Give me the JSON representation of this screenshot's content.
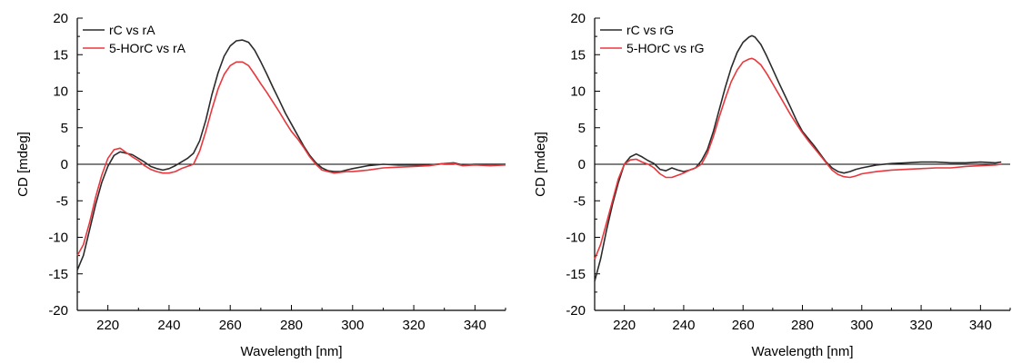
{
  "chart_data": [
    {
      "type": "line",
      "xlabel": "Wavelength [nm]",
      "ylabel": "CD [mdeg]",
      "xlim": [
        210,
        350
      ],
      "ylim": [
        -20,
        20
      ],
      "xticks": [
        "220",
        "240",
        "260",
        "280",
        "300",
        "320",
        "340"
      ],
      "yticks": [
        "-20",
        "-15",
        "-10",
        "-5",
        "0",
        "5",
        "10",
        "15",
        "20"
      ],
      "zero_line": true,
      "legend_position": "top-left",
      "series": [
        {
          "name": "rC vs rA",
          "color": "#2b2b2b",
          "x": [
            210,
            212,
            214,
            216,
            218,
            220,
            222,
            224,
            226,
            228,
            230,
            232,
            234,
            236,
            238,
            240,
            242,
            244,
            246,
            248,
            250,
            252,
            254,
            256,
            258,
            260,
            262,
            264,
            266,
            268,
            270,
            272,
            274,
            276,
            278,
            280,
            282,
            284,
            286,
            288,
            290,
            292,
            294,
            296,
            298,
            300,
            305,
            310,
            315,
            320,
            325,
            330,
            333,
            336,
            340,
            345,
            350
          ],
          "y": [
            -14.5,
            -12.5,
            -9,
            -5.5,
            -2.5,
            -0.3,
            1.2,
            1.7,
            1.5,
            1.3,
            0.8,
            0.3,
            -0.3,
            -0.6,
            -0.8,
            -0.6,
            -0.2,
            0.3,
            0.8,
            1.5,
            3.2,
            6,
            9.5,
            12.5,
            14.8,
            16.2,
            16.9,
            17,
            16.7,
            15.6,
            14,
            12.3,
            10.5,
            8.8,
            7,
            5.5,
            4,
            2.5,
            1.2,
            0.2,
            -0.5,
            -0.9,
            -1,
            -1,
            -0.8,
            -0.6,
            -0.2,
            0,
            -0.1,
            -0.1,
            -0.1,
            0.1,
            0.2,
            -0.1,
            0,
            0,
            0
          ]
        },
        {
          "name": "5-HOrC vs rA",
          "color": "#e8383d",
          "x": [
            210,
            212,
            214,
            216,
            218,
            220,
            222,
            224,
            226,
            228,
            230,
            232,
            234,
            236,
            238,
            240,
            242,
            244,
            246,
            248,
            250,
            252,
            254,
            256,
            258,
            260,
            262,
            264,
            266,
            268,
            270,
            272,
            274,
            276,
            278,
            280,
            282,
            284,
            286,
            288,
            290,
            292,
            294,
            296,
            298,
            300,
            305,
            310,
            315,
            320,
            325,
            330,
            333,
            336,
            340,
            345,
            350
          ],
          "y": [
            -12.5,
            -11,
            -8,
            -4.5,
            -1.5,
            0.8,
            2,
            2.2,
            1.6,
            1,
            0.5,
            -0.2,
            -0.7,
            -1,
            -1.2,
            -1.2,
            -1,
            -0.6,
            -0.3,
            0,
            1.8,
            4.5,
            7.5,
            10.3,
            12.3,
            13.5,
            14,
            14,
            13.5,
            12.3,
            11,
            9.8,
            8.5,
            7.2,
            5.8,
            4.5,
            3.5,
            2.3,
            1,
            0,
            -0.8,
            -1,
            -1.2,
            -1.1,
            -1,
            -1,
            -0.8,
            -0.5,
            -0.4,
            -0.3,
            -0.2,
            0.1,
            0.1,
            -0.2,
            -0.1,
            -0.2,
            -0.1
          ]
        }
      ]
    },
    {
      "type": "line",
      "xlabel": "Wavelength [nm]",
      "ylabel": "CD [mdeg]",
      "xlim": [
        210,
        350
      ],
      "ylim": [
        -20,
        20
      ],
      "xticks": [
        "220",
        "240",
        "260",
        "280",
        "300",
        "320",
        "340"
      ],
      "yticks": [
        "-20",
        "-15",
        "-10",
        "-5",
        "0",
        "5",
        "10",
        "15",
        "20"
      ],
      "zero_line": true,
      "legend_position": "top-left",
      "series": [
        {
          "name": "rC vs rG",
          "color": "#2b2b2b",
          "x": [
            210,
            212,
            214,
            216,
            218,
            220,
            222,
            224,
            226,
            228,
            230,
            232,
            234,
            236,
            238,
            240,
            242,
            244,
            246,
            248,
            250,
            252,
            254,
            256,
            258,
            260,
            262,
            263,
            264,
            266,
            268,
            270,
            272,
            274,
            276,
            278,
            280,
            282,
            284,
            286,
            288,
            290,
            292,
            294,
            296,
            298,
            300,
            305,
            310,
            315,
            320,
            325,
            330,
            335,
            340,
            345,
            347
          ],
          "y": [
            -16,
            -13,
            -9,
            -5.5,
            -2.5,
            0,
            1,
            1.4,
            1,
            0.5,
            0.1,
            -0.7,
            -0.9,
            -0.5,
            -0.8,
            -1,
            -0.8,
            -0.5,
            0.5,
            2,
            4.5,
            7.5,
            10.5,
            13.2,
            15.3,
            16.7,
            17.4,
            17.6,
            17.4,
            16.4,
            14.8,
            13,
            11.2,
            9.5,
            7.8,
            6,
            4.5,
            3.5,
            2.5,
            1.4,
            0.3,
            -0.5,
            -1,
            -1.2,
            -1,
            -0.7,
            -0.5,
            -0.1,
            0.1,
            0.2,
            0.3,
            0.3,
            0.2,
            0.2,
            0.3,
            0.2,
            0.3
          ]
        },
        {
          "name": "5-HOrC vs rG",
          "color": "#e8383d",
          "x": [
            210,
            212,
            214,
            216,
            218,
            220,
            222,
            224,
            226,
            228,
            230,
            232,
            234,
            236,
            238,
            240,
            242,
            244,
            246,
            248,
            250,
            252,
            254,
            256,
            258,
            260,
            262,
            263,
            264,
            266,
            268,
            270,
            272,
            274,
            276,
            278,
            280,
            282,
            284,
            286,
            288,
            290,
            292,
            294,
            296,
            298,
            300,
            305,
            310,
            315,
            320,
            325,
            330,
            335,
            340,
            345,
            347
          ],
          "y": [
            -13,
            -11,
            -8,
            -5,
            -2,
            0,
            0.6,
            0.7,
            0.3,
            0,
            -0.5,
            -1.3,
            -1.8,
            -1.8,
            -1.5,
            -1.2,
            -0.8,
            -0.5,
            0,
            1.5,
            3.8,
            6.5,
            9,
            11.3,
            12.9,
            14,
            14.4,
            14.5,
            14.3,
            13.6,
            12.4,
            11,
            9.6,
            8.2,
            6.8,
            5.5,
            4.3,
            3.2,
            2.2,
            1.2,
            0.2,
            -0.8,
            -1.4,
            -1.7,
            -1.8,
            -1.6,
            -1.3,
            -1,
            -0.8,
            -0.7,
            -0.6,
            -0.5,
            -0.5,
            -0.3,
            -0.2,
            -0.1,
            0
          ]
        }
      ]
    }
  ]
}
